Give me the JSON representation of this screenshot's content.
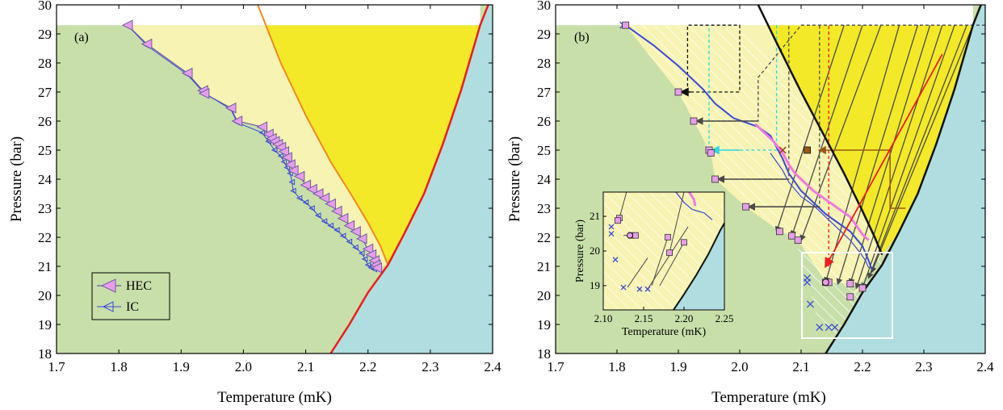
{
  "colors": {
    "green": "#c8dfaa",
    "pale_yellow": "#f7f3b2",
    "yellow": "#f3e928",
    "blue": "#b0dee0",
    "red_line": "#ee1c1c",
    "orange_line": "#f08a1c",
    "hec_fill": "#e79ee8",
    "hec_edge": "#6f5ca6",
    "ic_color": "#3a49d6",
    "black_line": "#111111",
    "dark_gray": "#4a4a4a",
    "cyan": "#33d6e0",
    "pink": "#f07ae0",
    "brown": "#9a5818"
  },
  "chart_data": [
    {
      "type": "line",
      "panel_label": "(a)",
      "xlabel": "Temperature (mK)",
      "ylabel": "Pressure (bar)",
      "xlim": [
        1.7,
        2.4
      ],
      "ylim": [
        18,
        30
      ],
      "xticks": [
        "1.7",
        "1.8",
        "1.9",
        "2.0",
        "2.1",
        "2.2",
        "2.3",
        "2.4"
      ],
      "yticks": [
        "18",
        "19",
        "20",
        "21",
        "22",
        "23",
        "24",
        "25",
        "26",
        "27",
        "28",
        "29",
        "30"
      ],
      "legend": {
        "position": "bottom-left",
        "entries": [
          "HEC",
          "IC"
        ]
      },
      "regions": {
        "ab_boundary": [
          [
            2.023,
            30
          ],
          [
            2.06,
            28
          ],
          [
            2.1,
            26.2
          ],
          [
            2.14,
            24.6
          ],
          [
            2.175,
            23.4
          ],
          [
            2.2,
            22.5
          ],
          [
            2.22,
            21.7
          ],
          [
            2.232,
            21.05
          ]
        ],
        "tc_line": [
          [
            2.14,
            18
          ],
          [
            2.17,
            19
          ],
          [
            2.2,
            20.1
          ],
          [
            2.232,
            21.05
          ],
          [
            2.26,
            22.2
          ],
          [
            2.29,
            23.5
          ],
          [
            2.32,
            25.2
          ],
          [
            2.35,
            27.1
          ],
          [
            2.38,
            29.3
          ],
          [
            2.393,
            30
          ]
        ],
        "upper_limit_pressure": 29.3
      },
      "series": [
        {
          "name": "HEC",
          "points": [
            [
              1.814,
              29.3
            ],
            [
              1.845,
              28.65
            ],
            [
              1.91,
              27.65
            ],
            [
              1.935,
              27.05
            ],
            [
              1.937,
              26.95
            ],
            [
              1.98,
              26.45
            ],
            [
              1.99,
              26.0
            ],
            [
              2.03,
              25.8
            ],
            [
              2.04,
              25.55
            ],
            [
              2.045,
              25.4
            ],
            [
              2.05,
              25.3
            ],
            [
              2.055,
              25.2
            ],
            [
              2.06,
              25.1
            ],
            [
              2.065,
              24.95
            ],
            [
              2.07,
              24.75
            ],
            [
              2.075,
              24.5
            ],
            [
              2.08,
              24.3
            ],
            [
              2.09,
              24.1
            ],
            [
              2.1,
              23.8
            ],
            [
              2.11,
              23.65
            ],
            [
              2.12,
              23.5
            ],
            [
              2.13,
              23.35
            ],
            [
              2.14,
              23.15
            ],
            [
              2.15,
              22.9
            ],
            [
              2.16,
              22.65
            ],
            [
              2.17,
              22.4
            ],
            [
              2.18,
              22.2
            ],
            [
              2.19,
              21.95
            ],
            [
              2.2,
              21.6
            ],
            [
              2.205,
              21.4
            ],
            [
              2.21,
              21.2
            ],
            [
              2.212,
              21.05
            ],
            [
              2.214,
              20.95
            ]
          ]
        },
        {
          "name": "IC",
          "points": [
            [
              1.814,
              29.3
            ],
            [
              1.845,
              28.6
            ],
            [
              1.91,
              27.6
            ],
            [
              1.935,
              27.0
            ],
            [
              1.98,
              26.4
            ],
            [
              1.99,
              25.95
            ],
            [
              2.03,
              25.6
            ],
            [
              2.04,
              25.3
            ],
            [
              2.05,
              25.0
            ],
            [
              2.06,
              24.8
            ],
            [
              2.065,
              24.6
            ],
            [
              2.07,
              24.4
            ],
            [
              2.075,
              24.2
            ],
            [
              2.078,
              23.9
            ],
            [
              2.08,
              23.6
            ],
            [
              2.09,
              23.35
            ],
            [
              2.1,
              23.2
            ],
            [
              2.11,
              23.0
            ],
            [
              2.12,
              22.75
            ],
            [
              2.13,
              22.55
            ],
            [
              2.14,
              22.4
            ],
            [
              2.15,
              22.25
            ],
            [
              2.16,
              22.05
            ],
            [
              2.17,
              21.85
            ],
            [
              2.18,
              21.65
            ],
            [
              2.19,
              21.45
            ],
            [
              2.195,
              21.25
            ],
            [
              2.2,
              21.05
            ],
            [
              2.205,
              20.95
            ],
            [
              2.21,
              20.9
            ]
          ]
        }
      ]
    },
    {
      "type": "scatter",
      "panel_label": "(b)",
      "xlabel": "Temperature (mK)",
      "ylabel": "Pressure (bar)",
      "xlim": [
        1.7,
        2.4
      ],
      "ylim": [
        18,
        30
      ],
      "xticks": [
        "1.7",
        "1.8",
        "1.9",
        "2.0",
        "2.1",
        "2.2",
        "2.3",
        "2.4"
      ],
      "yticks": [
        "18",
        "19",
        "20",
        "21",
        "22",
        "23",
        "24",
        "25",
        "26",
        "27",
        "28",
        "29",
        "30"
      ],
      "regions": {
        "ab_boundary": [
          [
            2.03,
            30
          ],
          [
            2.06,
            28.7
          ],
          [
            2.1,
            27.0
          ],
          [
            2.14,
            25.4
          ],
          [
            2.17,
            24.2
          ],
          [
            2.2,
            22.9
          ],
          [
            2.22,
            22.0
          ],
          [
            2.232,
            21.4
          ]
        ],
        "tc_line": [
          [
            2.14,
            18
          ],
          [
            2.17,
            19
          ],
          [
            2.2,
            20.1
          ],
          [
            2.232,
            21.05
          ],
          [
            2.26,
            22.2
          ],
          [
            2.29,
            23.5
          ],
          [
            2.32,
            25.2
          ],
          [
            2.35,
            27.1
          ],
          [
            2.38,
            29.3
          ],
          [
            2.393,
            30
          ]
        ],
        "upper_limit_pressure": 29.3
      },
      "series": [
        {
          "name": "HEC",
          "points": [
            [
              1.814,
              29.3
            ],
            [
              1.9,
              27.0
            ],
            [
              1.925,
              26.0
            ],
            [
              1.95,
              25.0
            ],
            [
              1.953,
              24.9
            ],
            [
              1.96,
              24.0
            ],
            [
              2.01,
              23.05
            ],
            [
              2.065,
              22.2
            ],
            [
              2.085,
              22.05
            ],
            [
              2.095,
              21.9
            ],
            [
              2.14,
              20.45
            ],
            [
              2.145,
              20.45
            ],
            [
              2.18,
              20.4
            ],
            [
              2.2,
              20.25
            ],
            [
              2.18,
              19.95
            ]
          ]
        },
        {
          "name": "IC",
          "points": [
            [
              1.81,
              29.3
            ],
            [
              1.9,
              27.0
            ],
            [
              1.95,
              25.0
            ],
            [
              2.11,
              20.6
            ],
            [
              2.11,
              20.45
            ],
            [
              2.115,
              19.7
            ],
            [
              2.13,
              18.9
            ],
            [
              2.145,
              18.9
            ],
            [
              2.155,
              18.9
            ]
          ]
        }
      ],
      "inset": {
        "xlabel": "Temperature (mK)",
        "ylabel": "Pressure (bar)",
        "xlim": [
          2.1,
          2.25
        ],
        "ylim": [
          18.3,
          21.7
        ],
        "xticks": [
          "2.10",
          "2.15",
          "2.20",
          "2.25"
        ],
        "yticks": [
          "19",
          "20",
          "21"
        ],
        "hec_points": [
          [
            2.12,
            20.95
          ],
          [
            2.118,
            20.88
          ],
          [
            2.135,
            20.45
          ],
          [
            2.14,
            20.45
          ],
          [
            2.18,
            20.4
          ],
          [
            2.2,
            20.25
          ],
          [
            2.182,
            19.95
          ]
        ],
        "ic_points": [
          [
            2.11,
            20.7
          ],
          [
            2.11,
            20.5
          ],
          [
            2.115,
            19.75
          ],
          [
            2.125,
            18.95
          ],
          [
            2.145,
            18.9
          ],
          [
            2.155,
            18.9
          ]
        ]
      }
    }
  ]
}
